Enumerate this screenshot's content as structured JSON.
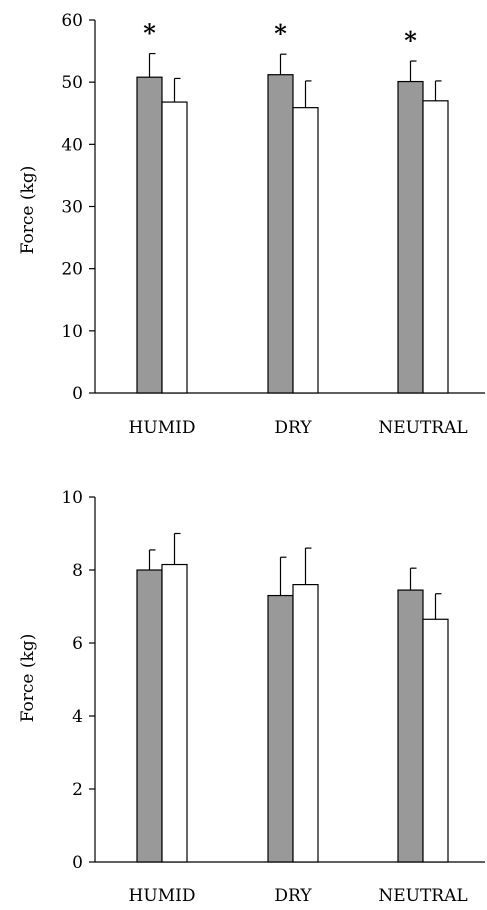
{
  "colors": {
    "pre_fill": "#999999",
    "post_fill": "#ffffff",
    "stroke": "#000000"
  },
  "chart_data": [
    {
      "type": "bar",
      "title": "",
      "xlabel": "",
      "ylabel": "Force (kg)",
      "ylim": [
        0,
        60
      ],
      "yticks": [
        0,
        10,
        20,
        30,
        40,
        50,
        60
      ],
      "ytick_labels": [
        "0",
        "10",
        "20",
        "30",
        "40",
        "50",
        "60"
      ],
      "categories": [
        "HUMID",
        "DRY",
        "NEUTRAL"
      ],
      "series": [
        {
          "values": [
            50.8,
            51.2,
            50.1
          ],
          "error": [
            3.8,
            3.3,
            3.3
          ]
        },
        {
          "values": [
            46.8,
            45.9,
            47.0
          ],
          "error": [
            3.8,
            4.3,
            3.2
          ]
        }
      ],
      "annotations": [
        "*",
        "*",
        "*"
      ],
      "grid": false,
      "legend": "none"
    },
    {
      "type": "bar",
      "title": "",
      "xlabel": "",
      "ylabel": "Force (kg)",
      "ylim": [
        0,
        10
      ],
      "yticks": [
        0,
        2,
        4,
        6,
        8,
        10
      ],
      "ytick_labels": [
        "0",
        "2",
        "4",
        "6",
        "8",
        "10"
      ],
      "categories": [
        "HUMID",
        "DRY",
        "NEUTRAL"
      ],
      "series": [
        {
          "values": [
            8.0,
            7.3,
            7.45
          ],
          "error": [
            0.55,
            1.05,
            0.6
          ]
        },
        {
          "values": [
            8.15,
            7.6,
            6.65
          ],
          "error": [
            0.85,
            1.0,
            0.7
          ]
        }
      ],
      "annotations": [
        "",
        "",
        ""
      ],
      "grid": false,
      "legend": "none"
    }
  ]
}
